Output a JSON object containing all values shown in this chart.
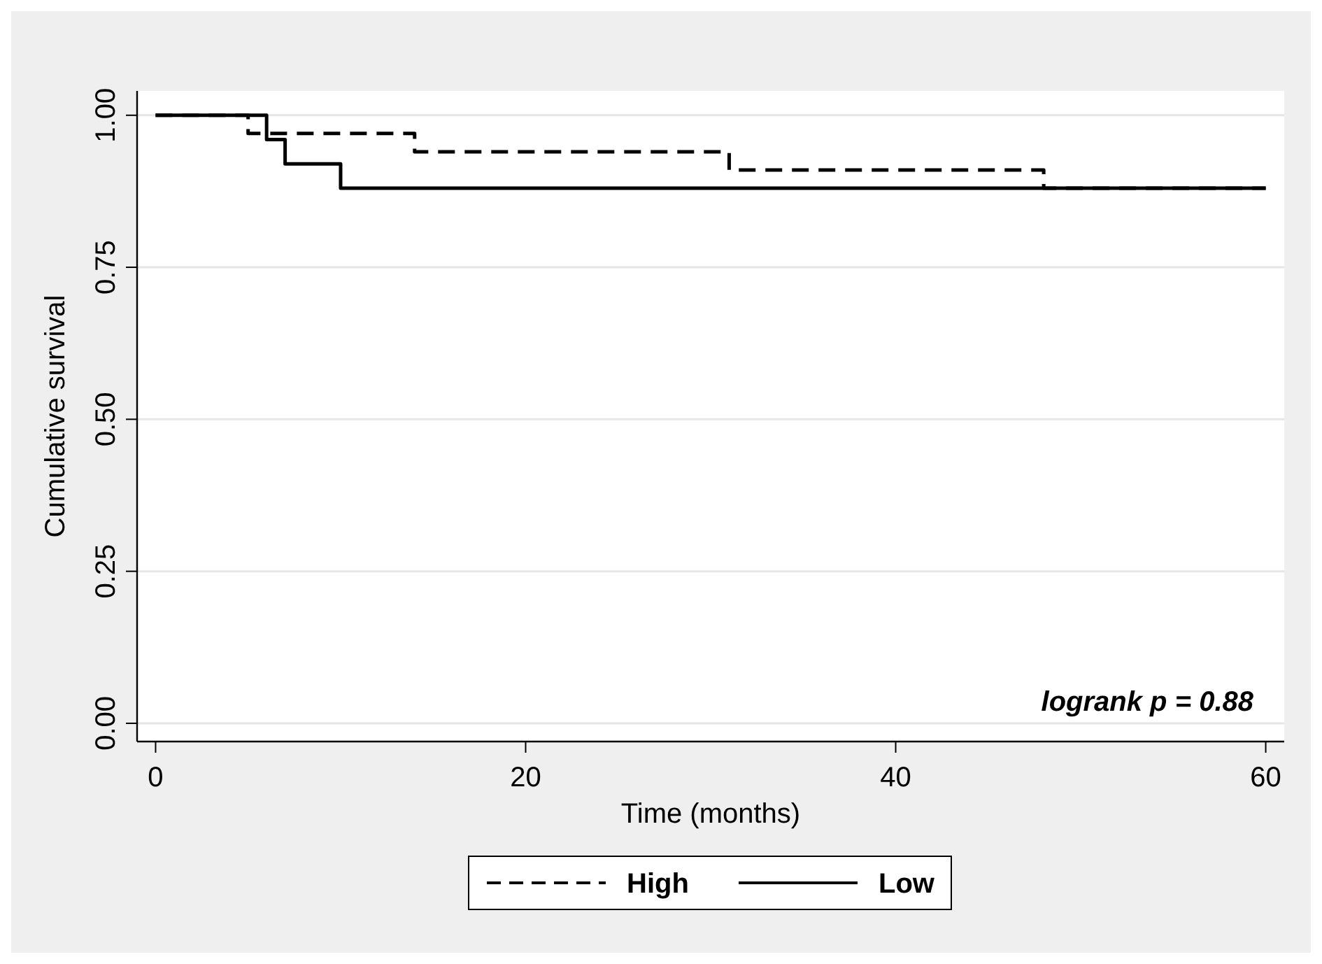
{
  "chart_data": {
    "type": "step",
    "xlabel": "Time (months)",
    "ylabel": "Cumulative survival",
    "xlim": [
      -1,
      61
    ],
    "xticks": [
      0,
      20,
      40,
      60
    ],
    "ylim": [
      -0.03,
      1.04
    ],
    "yticks": [
      {
        "value": 0,
        "label": "0.00"
      },
      {
        "value": 0.25,
        "label": "0.25"
      },
      {
        "value": 0.5,
        "label": "0.50"
      },
      {
        "value": 0.75,
        "label": "0.75"
      },
      {
        "value": 1,
        "label": "1.00"
      }
    ],
    "grid": "y",
    "legend": "bottom",
    "annotations": [
      "logrank p = 0.88"
    ],
    "series": [
      {
        "name": "High",
        "color": "#000000",
        "line_style": "dashed",
        "x": [
          0,
          5,
          14,
          31,
          48,
          60
        ],
        "values": [
          1,
          0.97,
          0.94,
          0.91,
          0.88,
          0.88
        ]
      },
      {
        "name": "Low",
        "color": "#000000",
        "line_style": "solid",
        "x": [
          0,
          6,
          7,
          10,
          60
        ],
        "values": [
          1,
          0.96,
          0.92,
          0.88,
          0.88
        ]
      }
    ]
  }
}
